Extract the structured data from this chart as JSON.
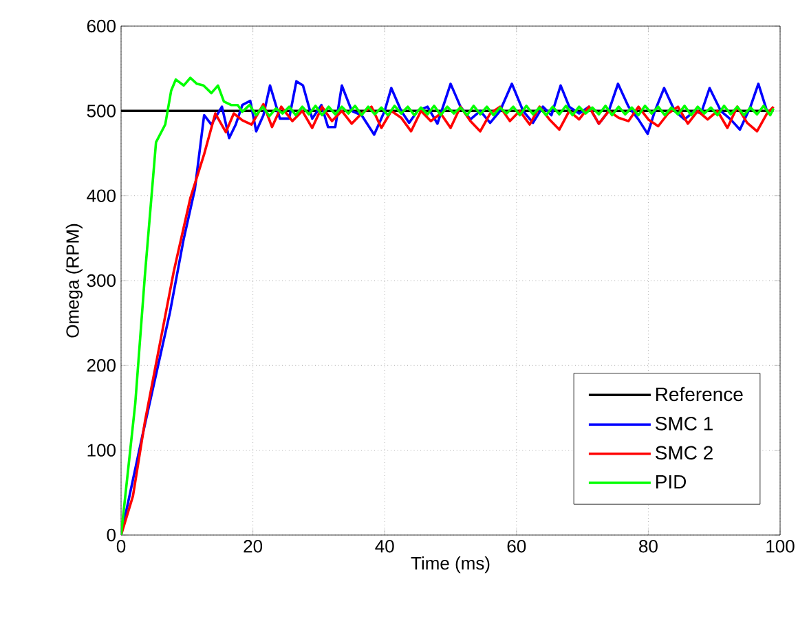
{
  "chart_data": {
    "type": "line",
    "xlabel": "Time (ms)",
    "ylabel": "Omega (RPM)",
    "xlim": [
      0,
      100
    ],
    "ylim": [
      0,
      600
    ],
    "xticks": [
      0,
      20,
      40,
      60,
      80,
      100
    ],
    "yticks": [
      0,
      100,
      200,
      300,
      400,
      500,
      600
    ],
    "grid": true,
    "legend": "bottom right",
    "line_style": "solid",
    "marker": "none",
    "series": [
      {
        "name": "Reference",
        "color": "#000000",
        "x": [
          0,
          99
        ],
        "values": [
          500,
          500
        ]
      },
      {
        "name": "SMC 1",
        "color": "#0000ff",
        "x": [
          0,
          3.2,
          7.4,
          9.5,
          11.2,
          12.6,
          13.7,
          15.3,
          16.4,
          17.4,
          18.4,
          19.6,
          20.5,
          21.6,
          22.6,
          24.1,
          25.5,
          26.6,
          27.6,
          29,
          30.4,
          31.4,
          32.5,
          33.5,
          35,
          36.5,
          38.4,
          40,
          41,
          42.5,
          43.7,
          45,
          46.5,
          48,
          50,
          51.5,
          53,
          54.5,
          56,
          57.5,
          59.3,
          61,
          62.5,
          64,
          65.3,
          66.7,
          68,
          69.5,
          71,
          72.5,
          74,
          75.4,
          77,
          78.5,
          79.9,
          81,
          82.4,
          84,
          85.5,
          87,
          88,
          89.3,
          91,
          92.5,
          93.9,
          95.5,
          96.7,
          98
        ],
        "values": [
          0,
          116,
          262,
          349,
          408,
          495,
          484,
          505,
          468,
          484,
          507,
          512,
          476,
          495,
          530,
          491,
          491,
          535,
          530,
          491,
          507,
          481,
          481,
          530,
          500,
          495,
          472,
          500,
          527,
          500,
          486,
          500,
          505,
          485,
          532,
          505,
          490,
          500,
          486,
          500,
          532,
          500,
          486,
          505,
          495,
          530,
          505,
          497,
          505,
          485,
          500,
          532,
          505,
          490,
          473,
          500,
          527,
          500,
          490,
          500,
          497,
          527,
          500,
          490,
          478,
          505,
          532,
          500
        ]
      },
      {
        "name": "SMC 2",
        "color": "#ff0000",
        "x": [
          0,
          1.8,
          3.6,
          8,
          10.5,
          12.6,
          14.3,
          15.9,
          17.1,
          18.4,
          19.8,
          21.6,
          22.9,
          24.3,
          26,
          27.5,
          29,
          30.5,
          32,
          33.5,
          35,
          36.5,
          38,
          39.5,
          41,
          42.5,
          44,
          45.5,
          47,
          48.5,
          50,
          51.5,
          53,
          54.5,
          56,
          57.5,
          59,
          60.5,
          62,
          63.5,
          65,
          66.5,
          68,
          69.5,
          71,
          72.5,
          74,
          75.5,
          77,
          78.5,
          80,
          81.5,
          83,
          84.5,
          86,
          87.5,
          89,
          90.5,
          92,
          93.5,
          95,
          96.5,
          98,
          99
        ],
        "values": [
          0,
          46,
          133,
          311,
          397,
          449,
          497,
          475,
          497,
          489,
          484,
          508,
          481,
          505,
          488,
          500,
          480,
          505,
          488,
          500,
          485,
          497,
          505,
          480,
          500,
          492,
          476,
          500,
          488,
          497,
          480,
          505,
          488,
          476,
          497,
          505,
          488,
          500,
          484,
          505,
          490,
          478,
          500,
          490,
          505,
          485,
          500,
          492,
          488,
          505,
          490,
          482,
          497,
          505,
          485,
          500,
          490,
          500,
          480,
          505,
          486,
          476,
          497,
          505
        ]
      },
      {
        "name": "PID",
        "color": "#00ff00",
        "x": [
          0,
          2.15,
          3.6,
          5.3,
          6.7,
          7.6,
          8.3,
          9.5,
          10.5,
          11.5,
          12.5,
          13.7,
          14.7,
          15.6,
          16.7,
          17.7,
          18.4,
          19.5,
          20.5,
          21.5,
          22.5,
          23.5,
          24.5,
          25.5,
          26.5,
          27.5,
          28.5,
          29.5,
          30.5,
          31.5,
          32.5,
          33.5,
          34.5,
          35.5,
          36.5,
          37.5,
          38.5,
          39.5,
          40.5,
          41.5,
          42.5,
          43.5,
          44.5,
          45.5,
          46.5,
          47.5,
          48.5,
          49.5,
          50.5,
          51.5,
          52.5,
          53.5,
          54.5,
          55.5,
          56.5,
          57.5,
          58.5,
          59.5,
          60.5,
          61.5,
          62.5,
          63.5,
          64.5,
          65.5,
          66.5,
          67.5,
          68.5,
          69.5,
          70.5,
          71.5,
          72.5,
          73.5,
          74.5,
          75.5,
          76.5,
          77.5,
          78.5,
          79.5,
          80.5,
          81.5,
          82.5,
          83.5,
          84.5,
          85.5,
          86.5,
          87.5,
          88.5,
          89.5,
          90.5,
          91.5,
          92.5,
          93.5,
          94.5,
          95.5,
          96.5,
          97.5,
          98.5,
          99
        ],
        "values": [
          0,
          155,
          305,
          463,
          484,
          524,
          537,
          530,
          539,
          532,
          530,
          521,
          530,
          511,
          507,
          507,
          499,
          507,
          495,
          505,
          494,
          503,
          497,
          505,
          495,
          505,
          496,
          506,
          495,
          505,
          496,
          505,
          497,
          506,
          495,
          505,
          496,
          504,
          495,
          506,
          497,
          505,
          495,
          504,
          496,
          506,
          495,
          505,
          497,
          504,
          495,
          506,
          496,
          505,
          495,
          504,
          497,
          505,
          495,
          506,
          496,
          504,
          495,
          505,
          496,
          506,
          495,
          505,
          497,
          504,
          496,
          506,
          495,
          505,
          496,
          504,
          495,
          506,
          497,
          505,
          495,
          504,
          496,
          506,
          495,
          505,
          497,
          504,
          495,
          506,
          496,
          505,
          495,
          504,
          496,
          506,
          495,
          503
        ]
      }
    ]
  }
}
